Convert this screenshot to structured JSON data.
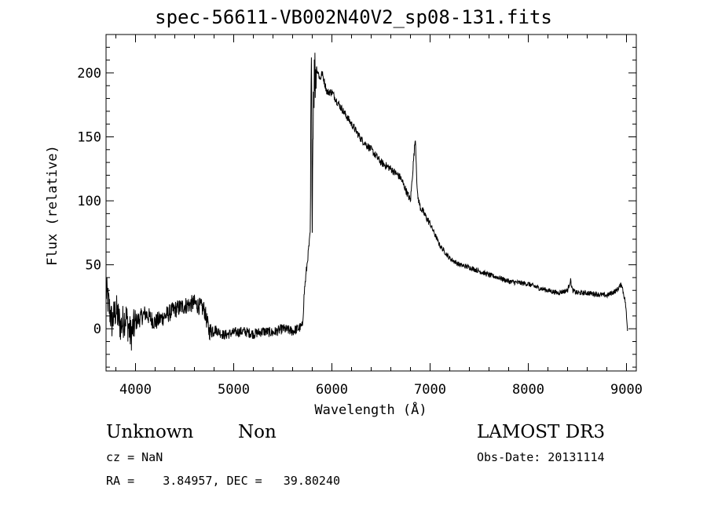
{
  "chart_data": {
    "type": "line",
    "title": "spec-56611-VB002N40V2_sp08-131.fits",
    "xlabel": "Wavelength (Å)",
    "ylabel": "Flux (relative)",
    "xlim": [
      3700,
      9100
    ],
    "ylim": [
      -33,
      230
    ],
    "xticks": [
      4000,
      5000,
      6000,
      7000,
      8000,
      9000
    ],
    "yticks": [
      0,
      50,
      100,
      150,
      200
    ],
    "grid": false,
    "series": [
      {
        "x": [
          3700,
          3760,
          3800,
          3850,
          3900,
          3950,
          4000,
          4100,
          4200,
          4300,
          4400,
          4500,
          4600,
          4700,
          4750,
          4800,
          4900,
          5000,
          5100,
          5200,
          5300,
          5400,
          5500,
          5600,
          5700,
          5720,
          5740,
          5760,
          5780,
          5790,
          5800,
          5810,
          5820,
          5840,
          5860,
          5880,
          5900,
          5950,
          6000,
          6050,
          6100,
          6200,
          6300,
          6400,
          6500,
          6600,
          6700,
          6800,
          6850,
          6870,
          6900,
          7000,
          7100,
          7200,
          7300,
          7400,
          7500,
          7600,
          7700,
          7800,
          7900,
          8000,
          8100,
          8200,
          8300,
          8400,
          8430,
          8450,
          8500,
          8600,
          8700,
          8800,
          8900,
          8950,
          8990,
          9010
        ],
        "y": [
          30,
          5,
          15,
          2,
          10,
          -5,
          5,
          12,
          5,
          10,
          15,
          18,
          20,
          15,
          -2,
          0,
          -5,
          -3,
          -2,
          -4,
          -2,
          -3,
          0,
          -2,
          2,
          30,
          45,
          60,
          75,
          210,
          100,
          180,
          195,
          205,
          200,
          195,
          200,
          185,
          185,
          178,
          172,
          160,
          148,
          140,
          130,
          125,
          118,
          100,
          150,
          105,
          95,
          82,
          65,
          55,
          50,
          48,
          45,
          42,
          40,
          37,
          36,
          35,
          32,
          30,
          28,
          30,
          38,
          30,
          28,
          28,
          27,
          26,
          30,
          35,
          20,
          -1
        ]
      }
    ]
  },
  "footer": {
    "class_label": "Unknown",
    "subclass_label": "Non",
    "cz_text": "cz = NaN",
    "coords_text": "RA =    3.84957, DEC =   39.80240",
    "survey_label": "LAMOST DR3",
    "obs_date_text": "Obs-Date: 20131114"
  }
}
